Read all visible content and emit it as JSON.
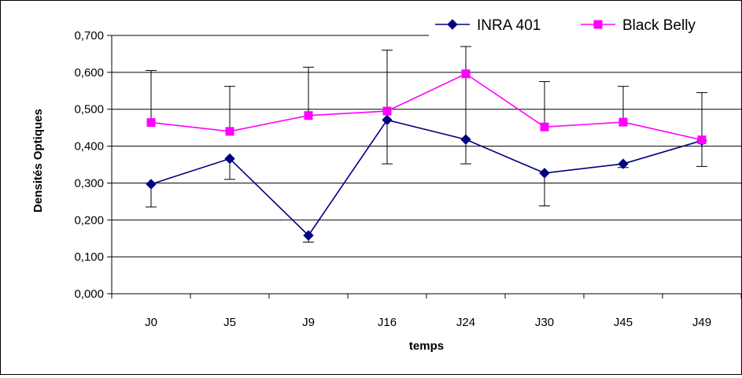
{
  "chart_data": {
    "type": "line",
    "title": "",
    "xlabel": "temps",
    "ylabel": "Densités Optiques",
    "categories": [
      "J0",
      "J5",
      "J9",
      "J16",
      "J24",
      "J30",
      "J45",
      "J49"
    ],
    "ylim": [
      0,
      0.7
    ],
    "yticks": [
      "0,000",
      "0,100",
      "0,200",
      "0,300",
      "0,400",
      "0,500",
      "0,600",
      "0,700"
    ],
    "grid": "horizontal",
    "legend_position": "top-right",
    "series": [
      {
        "name": "INRA 401",
        "color": "#000080",
        "marker": "diamond",
        "values": [
          0.297,
          0.366,
          0.158,
          0.471,
          0.418,
          0.327,
          0.352,
          0.415
        ],
        "error_low": [
          0.235,
          0.31,
          0.14,
          null,
          null,
          0.238,
          0.342,
          0.345
        ]
      },
      {
        "name": "Black Belly",
        "color": "#FF00FF",
        "marker": "square",
        "values": [
          0.464,
          0.44,
          0.483,
          0.495,
          0.596,
          0.452,
          0.465,
          0.417
        ],
        "error_high": [
          0.605,
          0.562,
          0.614,
          0.66,
          0.67,
          0.575,
          0.562,
          0.545
        ],
        "error_low": [
          null,
          null,
          null,
          0.352,
          0.352,
          null,
          null,
          null
        ]
      }
    ]
  }
}
